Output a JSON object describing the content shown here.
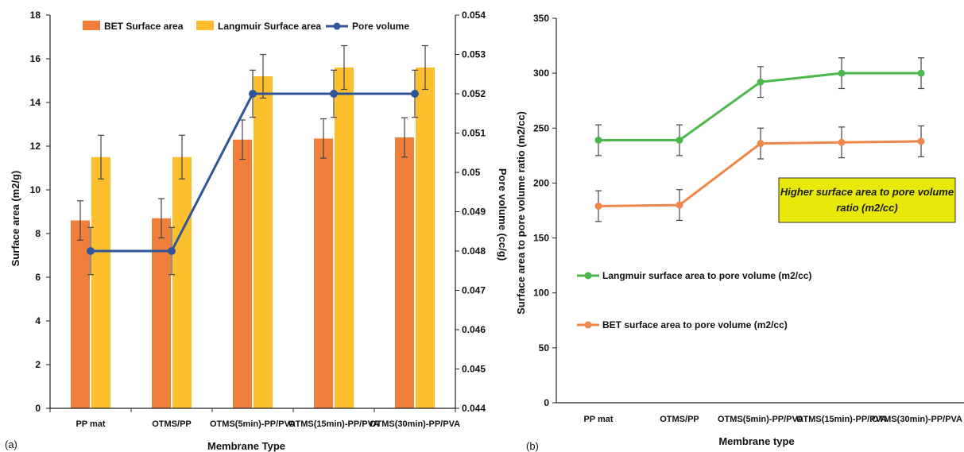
{
  "chart_data": [
    {
      "type": "bar",
      "panel_label": "(a)",
      "categories": [
        "PP mat",
        "OTMS/PP",
        "OTMS(5min)-PP/PVA",
        "OTMS(15min)-PP/PVA",
        "OTMS(30min)-PP/PVA"
      ],
      "xlabel": "Membrane Type",
      "ylabel": "Surface area (m2/g)",
      "ylabel_right": "Pore volume (cc/g)",
      "ylim": [
        0,
        18
      ],
      "yticks": [
        0,
        2,
        4,
        6,
        8,
        10,
        12,
        14,
        16,
        18
      ],
      "ylim_right": [
        0.044,
        0.054
      ],
      "yticks_right": [
        "0.044",
        "0.045",
        "0.046",
        "0.047",
        "0.048",
        "0.049",
        "0.05",
        "0.051",
        "0.052",
        "0.053",
        "0.054"
      ],
      "legend_position": "top",
      "series": [
        {
          "name": "BET Surface area",
          "kind": "bar",
          "axis": "left",
          "color": "#F07F3C",
          "values": [
            8.6,
            8.7,
            12.3,
            12.35,
            12.4
          ],
          "errors": [
            0.9,
            0.9,
            0.9,
            0.9,
            0.9
          ]
        },
        {
          "name": "Langmuir Surface area",
          "kind": "bar",
          "axis": "left",
          "color": "#FDBF2D",
          "values": [
            11.5,
            11.5,
            15.2,
            15.6,
            15.6
          ],
          "errors": [
            1.0,
            1.0,
            1.0,
            1.0,
            1.0
          ]
        },
        {
          "name": "Pore volume",
          "kind": "line",
          "axis": "right",
          "color": "#2F5597",
          "values": [
            0.048,
            0.048,
            0.052,
            0.052,
            0.052
          ],
          "errors": [
            0.0006,
            0.0006,
            0.0006,
            0.0006,
            0.0006
          ]
        }
      ]
    },
    {
      "type": "line",
      "panel_label": "(b)",
      "categories": [
        "PP mat",
        "OTMS/PP",
        "OTMS(5min)-PP/PVA",
        "OTMS(15min)-PP/PVA",
        "OTMS(30min)-PP/PVA"
      ],
      "xlabel": "Membrane type",
      "ylabel": "Surface area to pore volume ratio (m2/cc)",
      "ylim": [
        0,
        350
      ],
      "yticks": [
        0,
        50,
        100,
        150,
        200,
        250,
        300,
        350
      ],
      "legend_position": "left-middle",
      "annotation": "Higher surface area to pore volume ratio (m2/cc)",
      "annotation_lines": [
        "Higher surface area to pore volume",
        "ratio (m2/cc)"
      ],
      "annotation_color": "#E8E80A",
      "series": [
        {
          "name": "Langmuir surface area to pore volume (m2/cc)",
          "color": "#4CB84C",
          "values": [
            239,
            239,
            292,
            300,
            300
          ],
          "errors": [
            14,
            14,
            14,
            14,
            14
          ]
        },
        {
          "name": "BET surface area to pore volume (m2/cc)",
          "color": "#F0874A",
          "values": [
            179,
            180,
            236,
            237,
            238
          ],
          "errors": [
            14,
            14,
            14,
            14,
            14
          ]
        }
      ]
    }
  ]
}
